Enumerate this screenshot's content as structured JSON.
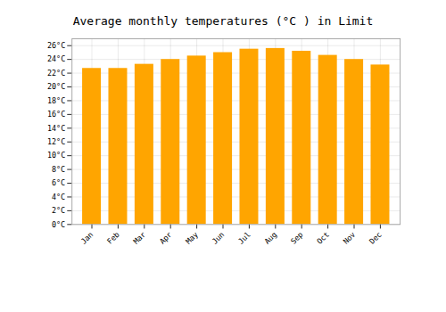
{
  "chart_data": {
    "type": "bar",
    "title": "Average monthly temperatures (°C ) in Limit",
    "categories": [
      "Jan",
      "Feb",
      "Mar",
      "Apr",
      "May",
      "Jun",
      "Jul",
      "Aug",
      "Sep",
      "Oct",
      "Nov",
      "Dec"
    ],
    "values": [
      22.7,
      22.7,
      23.3,
      24.0,
      24.5,
      25.0,
      25.5,
      25.6,
      25.2,
      24.6,
      24.0,
      23.2
    ],
    "color": "#FFA500",
    "ylim": [
      0,
      27
    ],
    "yticks": [
      {
        "value": 0,
        "label": "0°C"
      },
      {
        "value": 2,
        "label": "2°C"
      },
      {
        "value": 4,
        "label": "4°C"
      },
      {
        "value": 6,
        "label": "6°C"
      },
      {
        "value": 8,
        "label": "8°C"
      },
      {
        "value": 10,
        "label": "10°C"
      },
      {
        "value": 12,
        "label": "12°C"
      },
      {
        "value": 14,
        "label": "14°C"
      },
      {
        "value": 16,
        "label": "16°C"
      },
      {
        "value": 18,
        "label": "18°C"
      },
      {
        "value": 20,
        "label": "20°C"
      },
      {
        "value": 22,
        "label": "22°C"
      },
      {
        "value": 24,
        "label": "24°C"
      },
      {
        "value": 26,
        "label": "26°C"
      }
    ],
    "grid": true
  }
}
